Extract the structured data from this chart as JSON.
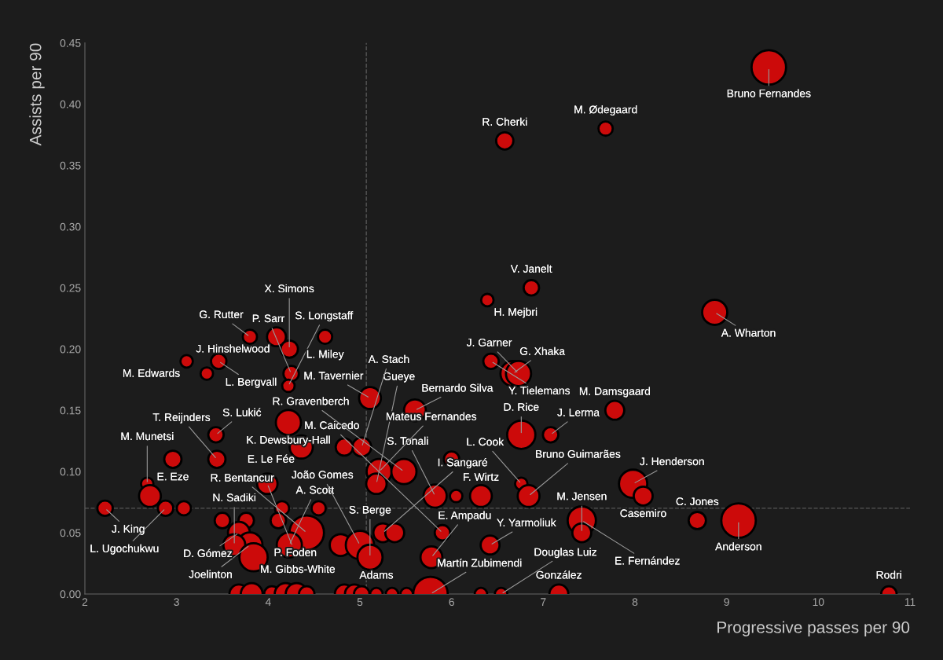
{
  "chart_data": {
    "type": "bubble",
    "xlabel": "Progressive passes per 90",
    "ylabel": "Assists per 90",
    "marker": "circle",
    "color": "#cc0a0a",
    "grid": false,
    "xlim": [
      2,
      11
    ],
    "xticks": [
      2,
      3,
      4,
      5,
      6,
      7,
      8,
      9,
      10,
      11
    ],
    "ylim": [
      0,
      0.45
    ],
    "yticks": [
      {
        "value": 0,
        "label": "0.00"
      },
      {
        "value": 0.05,
        "label": "0.05"
      },
      {
        "value": 0.1,
        "label": "0.10"
      },
      {
        "value": 0.15,
        "label": "0.15"
      },
      {
        "value": 0.2,
        "label": "0.20"
      },
      {
        "value": 0.25,
        "label": "0.25"
      },
      {
        "value": 0.3,
        "label": "0.30"
      },
      {
        "value": 0.35,
        "label": "0.35"
      },
      {
        "value": 0.4,
        "label": "0.40"
      },
      {
        "value": 0.45,
        "label": "0.45"
      }
    ],
    "x": [
      9.46,
      7.68,
      6.58,
      6.87,
      6.39,
      8.87,
      6.43,
      6.67,
      6.73,
      7.78,
      7.08,
      6.76,
      6.76,
      6.84,
      7.98,
      8.09,
      7.42,
      7.42,
      8.68,
      9.13,
      10.77,
      7.17,
      5.6,
      5.11,
      5.02,
      4.83,
      5.21,
      5.48,
      5.82,
      6.05,
      6.32,
      6.0,
      3.99,
      5.18,
      4.36,
      4.22,
      3.43,
      3.44,
      2.96,
      2.68,
      3.11,
      3.46,
      3.33,
      3.8,
      4.09,
      4.23,
      4.62,
      4.25,
      4.22,
      2.22,
      2.88,
      3.08,
      2.71,
      3.5,
      3.76,
      4.15,
      4.55,
      4.11,
      4.42,
      3.68,
      3.8,
      3.63,
      3.84,
      4.23,
      4.79,
      5.0,
      5.25,
      5.38,
      5.11,
      5.9,
      5.78,
      6.42,
      3.68,
      3.82,
      4.04,
      4.19,
      4.31,
      4.42,
      4.83,
      4.94,
      5.02,
      5.18,
      5.35,
      5.51,
      5.77,
      6.32,
      6.54
    ],
    "values": [
      0.43,
      0.38,
      0.37,
      0.25,
      0.24,
      0.23,
      0.19,
      0.18,
      0.18,
      0.15,
      0.13,
      0.13,
      0.09,
      0.08,
      0.09,
      0.08,
      0.06,
      0.05,
      0.06,
      0.06,
      0.0,
      0.0,
      0.15,
      0.16,
      0.12,
      0.12,
      0.1,
      0.1,
      0.08,
      0.08,
      0.08,
      0.11,
      0.09,
      0.09,
      0.12,
      0.14,
      0.13,
      0.11,
      0.11,
      0.09,
      0.19,
      0.19,
      0.18,
      0.21,
      0.21,
      0.2,
      0.21,
      0.18,
      0.17,
      0.07,
      0.07,
      0.07,
      0.08,
      0.06,
      0.06,
      0.07,
      0.07,
      0.06,
      0.05,
      0.05,
      0.04,
      0.04,
      0.03,
      0.04,
      0.04,
      0.04,
      0.05,
      0.05,
      0.03,
      0.05,
      0.03,
      0.04,
      0,
      0,
      0,
      0,
      0,
      0,
      0,
      0,
      0,
      0,
      0,
      0,
      0,
      0,
      0
    ],
    "sizes": [
      1.0,
      0.17,
      0.25,
      0.2,
      0.13,
      0.53,
      0.2,
      0.53,
      0.53,
      0.3,
      0.2,
      0.67,
      0.13,
      0.4,
      0.67,
      0.3,
      0.67,
      0.3,
      0.25,
      1.0,
      0.2,
      0.3,
      0.4,
      0.4,
      0.3,
      0.25,
      0.53,
      0.53,
      0.45,
      0.13,
      0.4,
      0.2,
      0.35,
      0.35,
      0.45,
      0.53,
      0.2,
      0.25,
      0.25,
      0.13,
      0.13,
      0.2,
      0.13,
      0.17,
      0.3,
      0.25,
      0.17,
      0.2,
      0.13,
      0.2,
      0.2,
      0.17,
      0.4,
      0.2,
      0.2,
      0.17,
      0.17,
      0.2,
      1.0,
      0.4,
      0.53,
      0.4,
      0.67,
      0.53,
      0.4,
      0.67,
      0.3,
      0.3,
      0.53,
      0.2,
      0.4,
      0.3,
      0.3,
      0.4,
      0.2,
      0.4,
      0.4,
      0.2,
      0.3,
      0.3,
      0.2,
      0.13,
      0.13,
      0.13,
      1.0,
      0.13,
      0.13
    ],
    "ref_lines": [
      {
        "axis": "x",
        "value": 5.07,
        "color": "#555555",
        "line_style": "dashed"
      },
      {
        "axis": "y",
        "value": 0.07,
        "color": "#555555",
        "line_style": "dashed"
      }
    ],
    "annotations": [
      {
        "text": "Bruno Fernandes",
        "x": 9.46,
        "y": 0.43
      },
      {
        "text": "M. Ødegaard",
        "x": 7.68,
        "y": 0.38
      },
      {
        "text": "R. Cherki",
        "x": 6.58,
        "y": 0.37
      },
      {
        "text": "V. Janelt",
        "x": 6.87,
        "y": 0.25
      },
      {
        "text": "H. Mejbri",
        "x": 6.39,
        "y": 0.24
      },
      {
        "text": "A. Wharton",
        "x": 8.87,
        "y": 0.23
      },
      {
        "text": "Y. Tielemans",
        "x": 6.43,
        "y": 0.19
      },
      {
        "text": "G. Xhaka",
        "x": 6.67,
        "y": 0.18
      },
      {
        "text": "J. Garner",
        "x": 6.73,
        "y": 0.18
      },
      {
        "text": "M. Damsgaard",
        "x": 7.78,
        "y": 0.15
      },
      {
        "text": "J. Lerma",
        "x": 7.08,
        "y": 0.13
      },
      {
        "text": "D. Rice",
        "x": 6.76,
        "y": 0.13
      },
      {
        "text": "L. Cook",
        "x": 6.76,
        "y": 0.09
      },
      {
        "text": "Bruno Guimarães",
        "x": 6.84,
        "y": 0.08
      },
      {
        "text": "J. Henderson",
        "x": 7.98,
        "y": 0.09
      },
      {
        "text": "Casemiro",
        "x": 8.09,
        "y": 0.08
      },
      {
        "text": "E. Fernández",
        "x": 7.42,
        "y": 0.06
      },
      {
        "text": "M. Jensen",
        "x": 7.42,
        "y": 0.05
      },
      {
        "text": "C. Jones",
        "x": 8.68,
        "y": 0.06
      },
      {
        "text": "Anderson",
        "x": 9.13,
        "y": 0.06
      },
      {
        "text": "Rodri",
        "x": 10.77,
        "y": 0.0
      },
      {
        "text": "González",
        "x": 7.17,
        "y": 0.0
      },
      {
        "text": "Bernardo Silva",
        "x": 5.6,
        "y": 0.15
      },
      {
        "text": "M. Tavernier",
        "x": 5.11,
        "y": 0.16
      },
      {
        "text": "A. Stach",
        "x": 5.02,
        "y": 0.12
      },
      {
        "text": "Mateus Fernandes",
        "x": 5.21,
        "y": 0.1
      },
      {
        "text": "R. Gravenberch",
        "x": 5.48,
        "y": 0.1
      },
      {
        "text": "S. Tonali",
        "x": 5.82,
        "y": 0.08
      },
      {
        "text": "F. Wirtz",
        "x": 6.32,
        "y": 0.08
      },
      {
        "text": "P. Foden",
        "x": 3.99,
        "y": 0.09
      },
      {
        "text": "Gueye",
        "x": 5.18,
        "y": 0.09
      },
      {
        "text": "E. Le Fée",
        "x": 4.36,
        "y": 0.12
      },
      {
        "text": "K. Dewsbury-Hall",
        "x": 4.22,
        "y": 0.14
      },
      {
        "text": "S. Lukić",
        "x": 3.43,
        "y": 0.13
      },
      {
        "text": "T. Reijnders",
        "x": 3.44,
        "y": 0.11
      },
      {
        "text": "E. Eze",
        "x": 2.96,
        "y": 0.11
      },
      {
        "text": "M. Munetsi",
        "x": 2.68,
        "y": 0.09
      },
      {
        "text": "M. Edwards",
        "x": 3.11,
        "y": 0.19
      },
      {
        "text": "L. Bergvall",
        "x": 3.46,
        "y": 0.19
      },
      {
        "text": "G. Rutter",
        "x": 3.8,
        "y": 0.21
      },
      {
        "text": "J. Hinshelwood",
        "x": 4.09,
        "y": 0.21
      },
      {
        "text": "X. Simons",
        "x": 4.23,
        "y": 0.2
      },
      {
        "text": "L. Miley",
        "x": 4.62,
        "y": 0.21
      },
      {
        "text": "P. Sarr",
        "x": 4.25,
        "y": 0.18
      },
      {
        "text": "S. Longstaff",
        "x": 4.22,
        "y": 0.17
      },
      {
        "text": "J. King",
        "x": 2.22,
        "y": 0.07
      },
      {
        "text": "L. Ugochukwu",
        "x": 2.88,
        "y": 0.07
      },
      {
        "text": "R. Bentancur",
        "x": 4.42,
        "y": 0.05
      },
      {
        "text": "D. Gómez",
        "x": 3.68,
        "y": 0.05
      },
      {
        "text": "Joelinton",
        "x": 3.8,
        "y": 0.04
      },
      {
        "text": "N. Sadiki",
        "x": 3.63,
        "y": 0.04
      },
      {
        "text": "M. Gibbs-White",
        "x": 3.84,
        "y": 0.03
      },
      {
        "text": "A. Scott",
        "x": 4.23,
        "y": 0.04
      },
      {
        "text": "João Gomes",
        "x": 5.0,
        "y": 0.04
      },
      {
        "text": "I. Sangaré",
        "x": 5.25,
        "y": 0.05
      },
      {
        "text": "S. Berge",
        "x": 5.11,
        "y": 0.03
      },
      {
        "text": "M. Caicedo",
        "x": 5.9,
        "y": 0.05
      },
      {
        "text": "E. Ampadu",
        "x": 5.78,
        "y": 0.03
      },
      {
        "text": "Y. Yarmoliuk",
        "x": 6.42,
        "y": 0.04
      },
      {
        "text": "Adams",
        "x": 5.18,
        "y": 0.0
      },
      {
        "text": "Martín Zubimendi",
        "x": 5.77,
        "y": 0.0
      },
      {
        "text": "Douglas Luiz",
        "x": 6.54,
        "y": 0.0
      }
    ]
  }
}
